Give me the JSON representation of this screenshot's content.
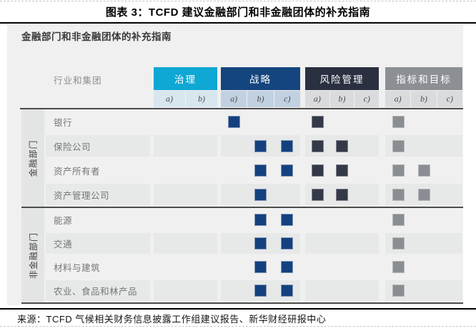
{
  "page": {
    "title": "图表 3：TCFD 建议金融部门和非金融团体的补充指南",
    "source": "来源：TCFD 气候相关财务信息披露工作组建议报告、新华财经研报中心"
  },
  "chart_data": {
    "type": "table",
    "title": "金融部门和非金融团体的补充指南",
    "row_axis_label": "行业和集团",
    "legend_position": "none",
    "grid": false,
    "column_groups": [
      {
        "id": "governance",
        "label": "治理",
        "header_color": "#0fa7d4",
        "subheader_color": "#d8e6ee",
        "marker_color": "#14417e",
        "marker_border": "#7f95b5",
        "columns": [
          "a)",
          "b)"
        ]
      },
      {
        "id": "strategy",
        "label": "战略",
        "header_color": "#15457e",
        "subheader_color": "#c2d1e1",
        "marker_color": "#14417e",
        "marker_border": "#7f95b5",
        "columns": [
          "a)",
          "b)",
          "c)"
        ]
      },
      {
        "id": "risk-management",
        "label": "风险管理",
        "header_color": "#2b3040",
        "subheader_color": "#d9dbdd",
        "marker_color": "#343947",
        "marker_border": "#80838d",
        "columns": [
          "a)",
          "b)",
          "c)"
        ]
      },
      {
        "id": "metrics-targets",
        "label": "指标和目标",
        "header_color": "#8c9095",
        "subheader_color": "#d9dbdd",
        "marker_color": "#8a8e93",
        "marker_border": "#b4b7ba",
        "columns": [
          "a)",
          "b)",
          "c)"
        ]
      }
    ],
    "sections": [
      {
        "id": "financial",
        "label": "金融部门",
        "rows": [
          {
            "label": "银行",
            "cells": [
              [
                0,
                0
              ],
              [
                1,
                0,
                0
              ],
              [
                1,
                0,
                0
              ],
              [
                1,
                0,
                0
              ]
            ]
          },
          {
            "label": "保险公司",
            "cells": [
              [
                0,
                0
              ],
              [
                0,
                1,
                1
              ],
              [
                1,
                1,
                0
              ],
              [
                1,
                0,
                0
              ]
            ]
          },
          {
            "label": "资产所有者",
            "cells": [
              [
                0,
                0
              ],
              [
                0,
                1,
                1
              ],
              [
                1,
                1,
                0
              ],
              [
                1,
                1,
                0
              ]
            ]
          },
          {
            "label": "资产管理公司",
            "cells": [
              [
                0,
                0
              ],
              [
                0,
                1,
                0
              ],
              [
                1,
                1,
                0
              ],
              [
                1,
                1,
                0
              ]
            ]
          }
        ]
      },
      {
        "id": "non-financial",
        "label": "非金融部门",
        "rows": [
          {
            "label": "能源",
            "cells": [
              [
                0,
                0
              ],
              [
                0,
                1,
                1
              ],
              [
                0,
                0,
                0
              ],
              [
                1,
                0,
                0
              ]
            ]
          },
          {
            "label": "交通",
            "cells": [
              [
                0,
                0
              ],
              [
                0,
                1,
                1
              ],
              [
                0,
                0,
                0
              ],
              [
                1,
                0,
                0
              ]
            ]
          },
          {
            "label": "材料与建筑",
            "cells": [
              [
                0,
                0
              ],
              [
                0,
                1,
                1
              ],
              [
                0,
                0,
                0
              ],
              [
                1,
                0,
                0
              ]
            ]
          },
          {
            "label": "农业、食品和林产品",
            "cells": [
              [
                0,
                0
              ],
              [
                0,
                1,
                1
              ],
              [
                0,
                0,
                0
              ],
              [
                1,
                0,
                0
              ]
            ]
          }
        ]
      }
    ]
  }
}
